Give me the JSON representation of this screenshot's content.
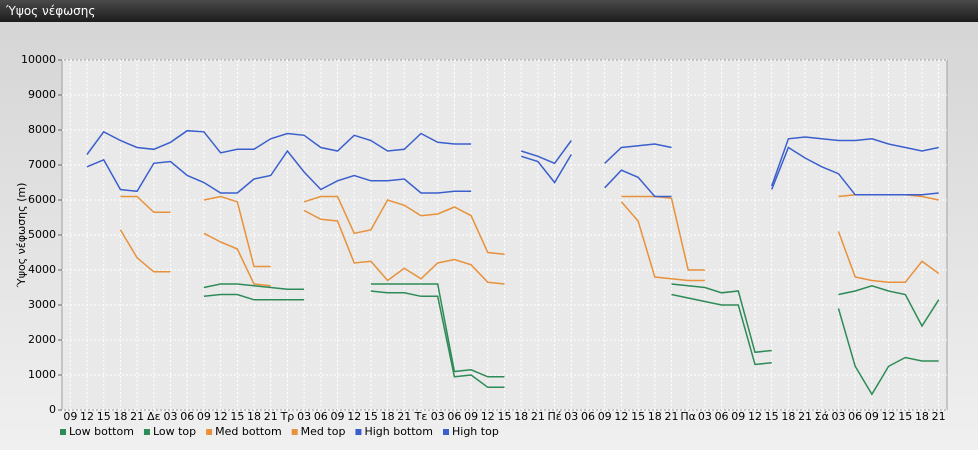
{
  "chart_data": {
    "type": "line",
    "title": "Ύψος νέφωσης",
    "y_label": "Ύψος νέφωσης (m)",
    "categories": [
      "09",
      "12",
      "15",
      "18",
      "21",
      "Δε",
      "03",
      "06",
      "09",
      "12",
      "15",
      "18",
      "21",
      "Τρ",
      "03",
      "06",
      "09",
      "12",
      "15",
      "18",
      "21",
      "Τε",
      "03",
      "06",
      "09",
      "12",
      "15",
      "18",
      "21",
      "Πέ",
      "03",
      "06",
      "09",
      "12",
      "15",
      "18",
      "21",
      "Πα",
      "03",
      "06",
      "09",
      "12",
      "15",
      "18",
      "21",
      "Σά",
      "03",
      "06",
      "09",
      "12",
      "15",
      "18",
      "21"
    ],
    "ylim": [
      0,
      10000
    ],
    "yticks": [
      0,
      1000,
      2000,
      3000,
      4000,
      5000,
      6000,
      7000,
      8000,
      9000,
      10000
    ],
    "grid": true,
    "legend": "bottom",
    "series": [
      {
        "name": "Low bottom",
        "color": "#2e8b57",
        "values": [
          null,
          null,
          null,
          null,
          null,
          null,
          null,
          null,
          3250,
          3300,
          3300,
          3150,
          3150,
          3150,
          3150,
          null,
          null,
          null,
          3400,
          3350,
          3350,
          3250,
          3250,
          950,
          1000,
          650,
          650,
          null,
          null,
          null,
          null,
          null,
          null,
          null,
          null,
          null,
          3300,
          3200,
          3100,
          3000,
          3000,
          1300,
          1350,
          null,
          null,
          null,
          2900,
          1250,
          450,
          1250,
          1500,
          1400,
          1400
        ]
      },
      {
        "name": "Low top",
        "color": "#2e8b57",
        "values": [
          null,
          null,
          null,
          null,
          null,
          null,
          null,
          null,
          3500,
          3600,
          3600,
          3550,
          3500,
          3450,
          3450,
          null,
          null,
          null,
          3600,
          3600,
          3600,
          3600,
          3600,
          1100,
          1150,
          950,
          950,
          null,
          null,
          null,
          null,
          null,
          null,
          null,
          null,
          null,
          3600,
          3550,
          3500,
          3350,
          3400,
          1650,
          1700,
          null,
          null,
          null,
          3300,
          3400,
          3550,
          3400,
          3300,
          2400,
          3150
        ]
      },
      {
        "name": "Med bottom",
        "color": "#e8913a",
        "values": [
          null,
          null,
          null,
          5150,
          4350,
          3950,
          3950,
          null,
          5050,
          4800,
          4600,
          3600,
          3550,
          null,
          5700,
          5450,
          5400,
          4200,
          4250,
          3700,
          4050,
          3750,
          4200,
          4300,
          4150,
          3650,
          3600,
          null,
          null,
          null,
          null,
          null,
          null,
          5950,
          5400,
          3800,
          3750,
          3700,
          3700,
          null,
          null,
          null,
          null,
          null,
          null,
          null,
          5100,
          3800,
          3700,
          3650,
          3650,
          4250,
          3900
        ]
      },
      {
        "name": "Med top",
        "color": "#e8913a",
        "values": [
          null,
          null,
          null,
          6100,
          6100,
          5650,
          5650,
          null,
          6000,
          6100,
          5950,
          4100,
          4100,
          null,
          5950,
          6100,
          6100,
          5050,
          5150,
          6000,
          5850,
          5550,
          5600,
          5800,
          5550,
          4500,
          4450,
          null,
          null,
          null,
          null,
          null,
          null,
          6100,
          6100,
          6100,
          6050,
          4000,
          4000,
          null,
          null,
          null,
          null,
          null,
          null,
          null,
          6100,
          6150,
          6150,
          6150,
          6150,
          6100,
          6000
        ]
      },
      {
        "name": "High bottom",
        "color": "#3a5fcd",
        "values": [
          null,
          6950,
          7150,
          6300,
          6250,
          7050,
          7100,
          6700,
          6500,
          6200,
          6200,
          6600,
          6700,
          7400,
          6800,
          6300,
          6550,
          6700,
          6550,
          6550,
          6600,
          6200,
          6200,
          6250,
          6250,
          null,
          null,
          7250,
          7100,
          6500,
          7300,
          null,
          6350,
          6850,
          6650,
          6100,
          6100,
          null,
          null,
          null,
          null,
          null,
          6300,
          7500,
          7200,
          6950,
          6750,
          6150,
          6150,
          6150,
          6150,
          6150,
          6200
        ]
      },
      {
        "name": "High top",
        "color": "#3a5fcd",
        "values": [
          null,
          7300,
          7950,
          7700,
          7500,
          7450,
          7650,
          7980,
          7950,
          7350,
          7450,
          7450,
          7750,
          7900,
          7850,
          7500,
          7400,
          7850,
          7700,
          7400,
          7450,
          7900,
          7650,
          7600,
          7600,
          null,
          null,
          7400,
          7250,
          7050,
          7700,
          null,
          7050,
          7500,
          7550,
          7600,
          7500,
          null,
          null,
          null,
          null,
          null,
          6400,
          7750,
          7800,
          7750,
          7700,
          7700,
          7750,
          7600,
          7500,
          7400,
          7500
        ]
      }
    ]
  }
}
